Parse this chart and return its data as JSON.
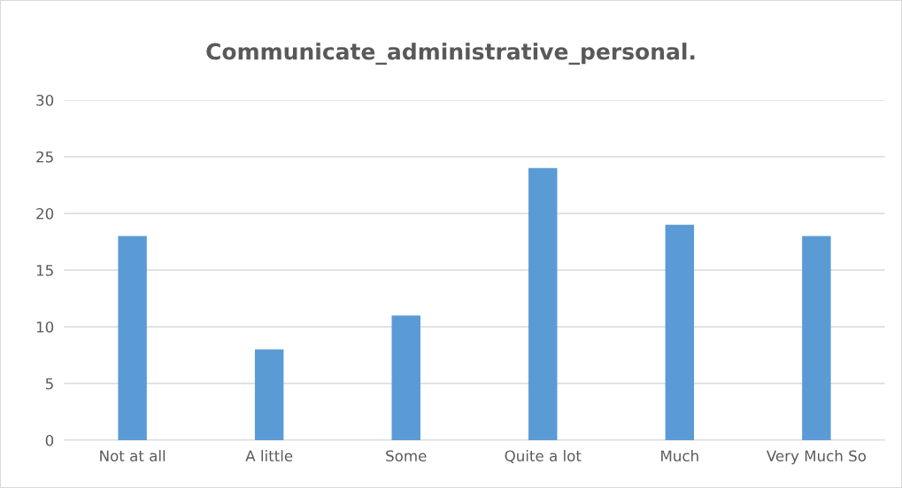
{
  "chart_data": {
    "type": "bar",
    "title": "Communicate_administrative_personal.",
    "categories": [
      "Not at all",
      "A little",
      "Some",
      "Quite a lot",
      "Much",
      "Very Much So"
    ],
    "values": [
      18,
      8,
      11,
      24,
      19,
      18
    ],
    "color": "#5b9bd5",
    "ylim": [
      0,
      30
    ],
    "yticks": [
      0,
      5,
      10,
      15,
      20,
      25,
      30
    ],
    "grid": "y",
    "legend": false
  }
}
